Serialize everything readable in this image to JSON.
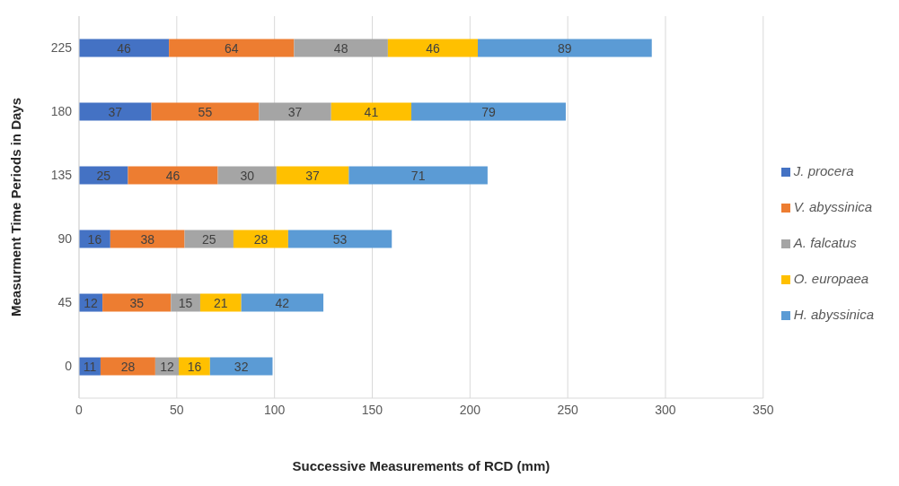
{
  "chart_data": {
    "type": "bar",
    "orientation": "horizontal",
    "stacked": true,
    "xlabel": "Successive Measurements of RCD (mm)",
    "ylabel": "Measurment Time Periods in Days",
    "categories": [
      "225",
      "180",
      "135",
      "90",
      "45",
      "0"
    ],
    "series": [
      {
        "name": "J. procera",
        "color": "#4472c4",
        "values": [
          46,
          37,
          25,
          16,
          12,
          11
        ]
      },
      {
        "name": "V. abyssinica",
        "color": "#ed7d31",
        "values": [
          64,
          55,
          46,
          38,
          35,
          28
        ]
      },
      {
        "name": "A. falcatus",
        "color": "#a5a5a5",
        "values": [
          48,
          37,
          30,
          25,
          15,
          12
        ]
      },
      {
        "name": "O. europaea",
        "color": "#ffc000",
        "values": [
          46,
          41,
          37,
          28,
          21,
          16
        ]
      },
      {
        "name": "H. abyssinica",
        "color": "#5b9bd5",
        "values": [
          89,
          79,
          71,
          53,
          42,
          32
        ]
      }
    ],
    "xlim": [
      0,
      350
    ],
    "xticks": [
      0,
      50,
      100,
      150,
      200,
      250,
      300,
      350
    ],
    "grid": "x",
    "legend": "right",
    "data_labels": true
  }
}
